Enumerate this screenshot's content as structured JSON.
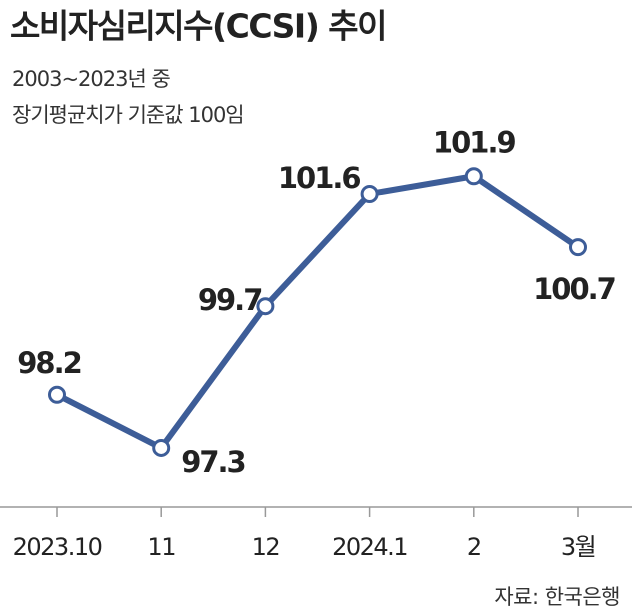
{
  "chart_data": {
    "type": "line",
    "title": "소비자심리지수(CCSI) 추이",
    "subtitle": [
      "2003~2023년 중",
      "장기평균치가 기준값 100임"
    ],
    "source": "자료: 한국은행",
    "categories": [
      "2023.10",
      "11",
      "12",
      "2024.1",
      "2",
      "3월"
    ],
    "values": [
      98.2,
      97.3,
      99.7,
      101.6,
      101.9,
      100.7
    ],
    "color": "#3d5d98",
    "ylim": [
      96.3,
      102.7
    ]
  }
}
